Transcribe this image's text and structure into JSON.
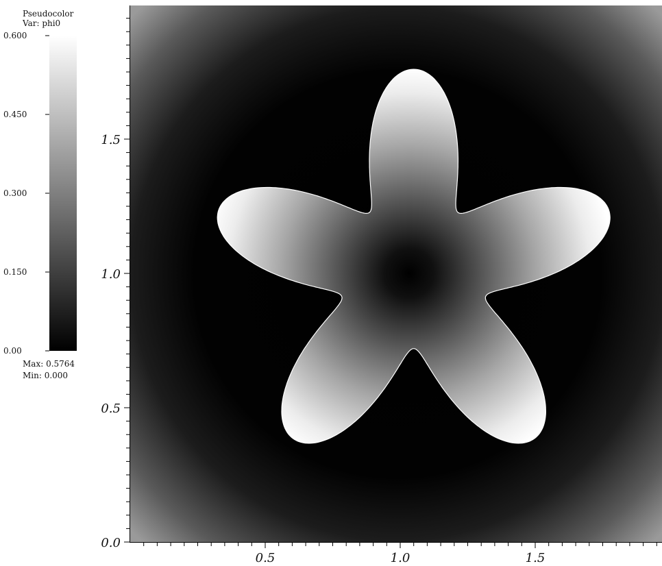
{
  "legend": {
    "title": "Pseudocolor",
    "var_label": "Var: phi0",
    "max_label": "Max:  0.5764",
    "min_label": "Min:  0.000"
  },
  "chart_data": {
    "type": "heatmap",
    "title": "",
    "variable": "phi0",
    "colormap": "grayscale (black to white)",
    "color_low": "#000000",
    "color_high": "#ffffff",
    "colorbar_range": [
      0.0,
      0.6
    ],
    "colorbar_ticks": [
      {
        "value": 0.0,
        "label": "0.00"
      },
      {
        "value": 0.15,
        "label": "0.150"
      },
      {
        "value": 0.3,
        "label": "0.300"
      },
      {
        "value": 0.45,
        "label": "0.450"
      },
      {
        "value": 0.6,
        "label": "0.600"
      }
    ],
    "data_max": 0.5764,
    "data_min": 0.0,
    "xlim": [
      0.0,
      2.0
    ],
    "ylim": [
      0.0,
      2.0
    ],
    "x_ticks": [
      {
        "value": 0.5,
        "label": "0.5"
      },
      {
        "value": 1.0,
        "label": "1.0"
      },
      {
        "value": 1.5,
        "label": "1.5"
      }
    ],
    "y_ticks": [
      {
        "value": 0.0,
        "label": "0.0"
      },
      {
        "value": 0.5,
        "label": "0.5"
      },
      {
        "value": 1.0,
        "label": "1.0"
      },
      {
        "value": 1.5,
        "label": "1.5"
      }
    ],
    "minor_tick_step": 0.05,
    "shape": {
      "type": "five-petal star",
      "center": [
        1.05,
        1.0
      ],
      "base_radius": 0.52,
      "petal_amplitude": 0.24,
      "petals": 5,
      "top_petal_angle_deg": 90
    },
    "boundary_color": "#ffffff",
    "grid": false
  }
}
